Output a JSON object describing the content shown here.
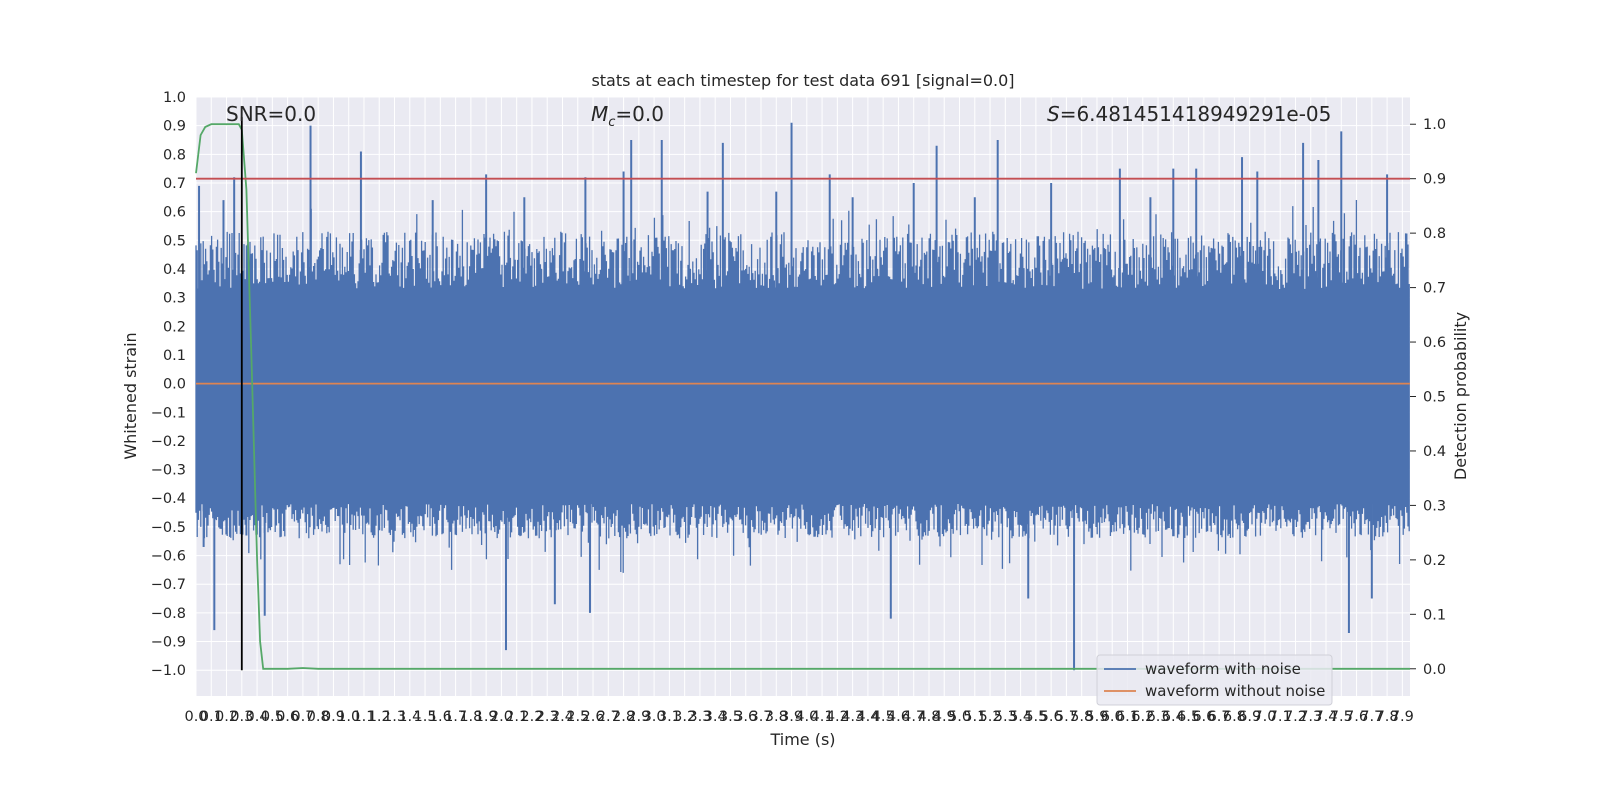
{
  "chart_data": {
    "type": "line",
    "title": "stats at each timestep for test data 691 [signal=0.0]",
    "xlabel": "Time (s)",
    "ylabel": "Whitened strain",
    "ylabel_right": "Detection probability",
    "xlim": [
      0.0,
      7.95
    ],
    "ylim": [
      -1.09,
      1.0
    ],
    "ylim_right": [
      -0.05,
      1.05
    ],
    "x_ticks": [
      "0.0",
      "0.1",
      "0.2",
      "0.3",
      "0.4",
      "0.5",
      "0.6",
      "0.7",
      "0.8",
      "0.9",
      "1.0",
      "1.1",
      "1.2",
      "1.3",
      "1.4",
      "1.5",
      "1.6",
      "1.7",
      "1.8",
      "1.9",
      "2.0",
      "2.1",
      "2.2",
      "2.3",
      "2.4",
      "2.5",
      "2.6",
      "2.7",
      "2.8",
      "2.9",
      "3.0",
      "3.1",
      "3.2",
      "3.3",
      "3.4",
      "3.5",
      "3.6",
      "3.7",
      "3.8",
      "3.9",
      "4.0",
      "4.1",
      "4.2",
      "4.3",
      "4.4",
      "4.5",
      "4.6",
      "4.7",
      "4.8",
      "4.9",
      "5.0",
      "5.1",
      "5.2",
      "5.3",
      "5.4",
      "5.5",
      "5.6",
      "5.7",
      "5.8",
      "5.9",
      "6.0",
      "6.1",
      "6.2",
      "6.3",
      "6.4",
      "6.5",
      "6.6",
      "6.7",
      "6.8",
      "6.9",
      "7.0",
      "7.1",
      "7.2",
      "7.3",
      "7.4",
      "7.5",
      "7.6",
      "7.7",
      "7.8",
      "7.9"
    ],
    "y_ticks_left": [
      "1.0",
      "0.9",
      "0.8",
      "0.7",
      "0.6",
      "0.5",
      "0.4",
      "0.3",
      "0.2",
      "0.1",
      "0.0",
      "−0.1",
      "−0.2",
      "−0.3",
      "−0.4",
      "−0.5",
      "−0.6",
      "−0.7",
      "−0.8",
      "−0.9",
      "−1.0"
    ],
    "y_ticks_right": [
      "1.0",
      "0.9",
      "0.8",
      "0.7",
      "0.6",
      "0.5",
      "0.4",
      "0.3",
      "0.2",
      "0.1",
      "0.0"
    ],
    "annotations": {
      "snr": "SNR=0.0",
      "mc_symbol": "M",
      "mc_sub": "c",
      "mc_value": "=0.0",
      "s_symbol": "S",
      "s_value": "=6.481451418949291e-05"
    },
    "series": [
      {
        "name": "waveform with noise",
        "axis": "left",
        "color": "#4c72b0",
        "kind": "noise",
        "band_upper": 0.33,
        "band_lower": -0.42,
        "peak_x": [
          0.02,
          0.05,
          0.12,
          0.18,
          0.25,
          0.33,
          0.45,
          0.75,
          1.08,
          1.55,
          1.9,
          2.03,
          2.15,
          2.35,
          2.55,
          2.58,
          2.8,
          2.85,
          3.05,
          3.35,
          3.45,
          3.8,
          3.9,
          4.15,
          4.3,
          4.55,
          4.7,
          4.85,
          5.1,
          5.25,
          5.45,
          5.6,
          5.75,
          6.05,
          6.25,
          6.4,
          6.55,
          6.85,
          6.95,
          7.25,
          7.35,
          7.5,
          7.55,
          7.7,
          7.8
        ],
        "peak_y": [
          0.69,
          -0.57,
          -0.86,
          0.64,
          0.72,
          -0.53,
          -0.81,
          0.9,
          0.81,
          0.64,
          0.73,
          -0.93,
          0.65,
          -0.77,
          0.72,
          -0.8,
          0.74,
          0.85,
          0.85,
          0.67,
          0.84,
          0.67,
          0.91,
          0.73,
          0.65,
          -0.82,
          0.7,
          0.83,
          0.65,
          0.85,
          -0.75,
          0.7,
          -1.0,
          0.75,
          0.65,
          0.75,
          0.75,
          0.79,
          0.74,
          0.84,
          0.78,
          0.88,
          -0.87,
          -0.75,
          0.73
        ]
      },
      {
        "name": "waveform without noise",
        "axis": "left",
        "color": "#dd8452",
        "x": [
          0.0,
          7.95
        ],
        "y": [
          0.0,
          0.0
        ]
      },
      {
        "name": "",
        "axis": "right",
        "color": "#55a868",
        "x": [
          0.0,
          0.03,
          0.06,
          0.1,
          0.15,
          0.2,
          0.25,
          0.28,
          0.3,
          0.33,
          0.36,
          0.4,
          0.42,
          0.44,
          0.5,
          0.6,
          0.7,
          0.8,
          1.0,
          7.95
        ],
        "y": [
          0.91,
          0.98,
          0.995,
          1.0,
          1.0,
          1.0,
          1.0,
          1.0,
          0.99,
          0.88,
          0.6,
          0.2,
          0.05,
          0.0,
          0.0,
          0.0,
          0.0015,
          0.0,
          0.0,
          0.0
        ]
      },
      {
        "name": "",
        "axis": "right",
        "color": "#c44e52",
        "x": [
          0.0,
          7.95
        ],
        "y": [
          0.9,
          0.9
        ]
      },
      {
        "name": "",
        "axis": "left",
        "color": "#000000",
        "x": [
          0.3,
          0.3
        ],
        "y": [
          -1.0,
          0.93
        ]
      }
    ],
    "legend": {
      "placement": "lower-right",
      "entries": [
        "waveform with noise",
        "waveform without noise"
      ]
    },
    "grid": true
  }
}
